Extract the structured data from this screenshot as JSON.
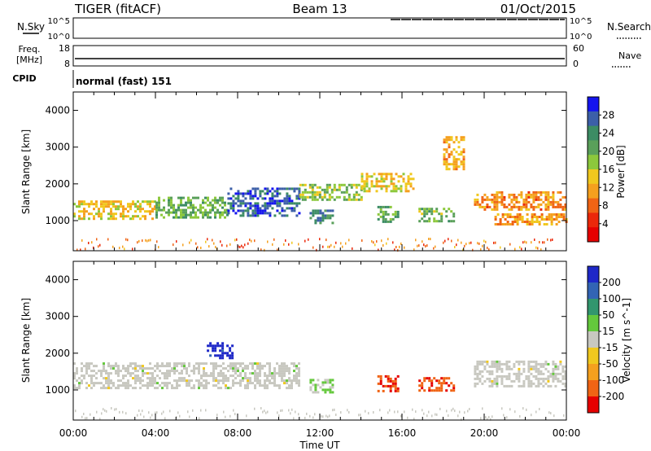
{
  "header": {
    "radar": "TIGER (fitACF)",
    "beam": "Beam 13",
    "date": "01/Oct/2015"
  },
  "panels": {
    "nsky_label": "N.Sky",
    "nsearch_label": "N.Search",
    "freq_label": "Freq.",
    "freq_unit": "[MHz]",
    "nave_label": "Nave",
    "cpid_label": "CPID",
    "cpid_value": "normal (fast) 151",
    "noise_ticks": [
      "10^5",
      "10^0"
    ],
    "freq_ticks": [
      "18",
      "8"
    ],
    "nave_ticks": [
      "60",
      "0"
    ]
  },
  "colors": {
    "power_scale": [
      "#1414ee",
      "#3c5fa8",
      "#3c8c64",
      "#5aa05a",
      "#8cc83c",
      "#f0c81e",
      "#f5a01e",
      "#f06414",
      "#eb280a",
      "#e60000"
    ],
    "velocity_scale": [
      "#1e28c8",
      "#3264b4",
      "#32966e",
      "#64c83c",
      "#c8c8c0",
      "#f0c81e",
      "#f5a01e",
      "#f06414",
      "#e60000"
    ]
  },
  "chart_data": [
    {
      "type": "heatmap",
      "parameter": "Power",
      "ylabel": "Slant Range [km]",
      "colorbar_label": "Power [dB]",
      "colorbar_ticks": [
        "28",
        "24",
        "20",
        "16",
        "12",
        "8",
        "4"
      ],
      "colorbar_range": [
        0,
        32
      ],
      "ylim": [
        180,
        4500
      ],
      "yticks": [
        "1000",
        "2000",
        "3000",
        "4000"
      ],
      "xlim": [
        "00:00",
        "24:00"
      ],
      "regions": [
        {
          "t_start": 0.0,
          "t_end": 4.0,
          "r_start": 1050,
          "r_end": 1550,
          "value": 14
        },
        {
          "t_start": 4.0,
          "t_end": 7.5,
          "r_start": 1100,
          "r_end": 1650,
          "value": 20
        },
        {
          "t_start": 7.5,
          "t_end": 11.0,
          "r_start": 1150,
          "r_end": 1900,
          "value": 27
        },
        {
          "t_start": 11.0,
          "t_end": 14.0,
          "r_start": 1600,
          "r_end": 2000,
          "value": 18
        },
        {
          "t_start": 11.5,
          "t_end": 12.6,
          "r_start": 950,
          "r_end": 1300,
          "value": 24
        },
        {
          "t_start": 14.0,
          "t_end": 16.5,
          "r_start": 1800,
          "r_end": 2300,
          "value": 14
        },
        {
          "t_start": 14.8,
          "t_end": 15.8,
          "r_start": 1000,
          "r_end": 1400,
          "value": 22
        },
        {
          "t_start": 16.8,
          "t_end": 18.5,
          "r_start": 1000,
          "r_end": 1350,
          "value": 19
        },
        {
          "t_start": 18.0,
          "t_end": 19.0,
          "r_start": 2400,
          "r_end": 3300,
          "value": 12
        },
        {
          "t_start": 19.5,
          "t_end": 24.0,
          "r_start": 1300,
          "r_end": 1800,
          "value": 10
        },
        {
          "t_start": 20.5,
          "t_end": 24.0,
          "r_start": 900,
          "r_end": 1200,
          "value": 11
        }
      ]
    },
    {
      "type": "heatmap",
      "parameter": "Velocity",
      "ylabel": "Slant Range [km]",
      "colorbar_label": "Velocity [m s^-1]",
      "colorbar_ticks": [
        "200",
        "100",
        "50",
        "15",
        "-15",
        "-50",
        "-100",
        "-200"
      ],
      "colorbar_range": [
        -250,
        250
      ],
      "ylim": [
        180,
        4500
      ],
      "yticks": [
        "1000",
        "2000",
        "3000",
        "4000"
      ],
      "xlim": [
        "00:00",
        "24:00"
      ],
      "regions": [
        {
          "t_start": 0.0,
          "t_end": 11.0,
          "r_start": 1050,
          "r_end": 1750,
          "value": 0
        },
        {
          "t_start": 6.5,
          "t_end": 7.8,
          "r_start": 1900,
          "r_end": 2300,
          "value": 220
        },
        {
          "t_start": 11.5,
          "t_end": 12.6,
          "r_start": 950,
          "r_end": 1300,
          "value": 30
        },
        {
          "t_start": 14.8,
          "t_end": 15.8,
          "r_start": 1000,
          "r_end": 1400,
          "value": -200
        },
        {
          "t_start": 16.8,
          "t_end": 18.5,
          "r_start": 1000,
          "r_end": 1350,
          "value": -180
        },
        {
          "t_start": 19.5,
          "t_end": 24.0,
          "r_start": 1100,
          "r_end": 1800,
          "value": 0
        }
      ]
    }
  ],
  "time_axis": {
    "ticks": [
      "00:00",
      "04:00",
      "08:00",
      "12:00",
      "16:00",
      "20:00",
      "00:00"
    ],
    "label": "Time UT"
  }
}
